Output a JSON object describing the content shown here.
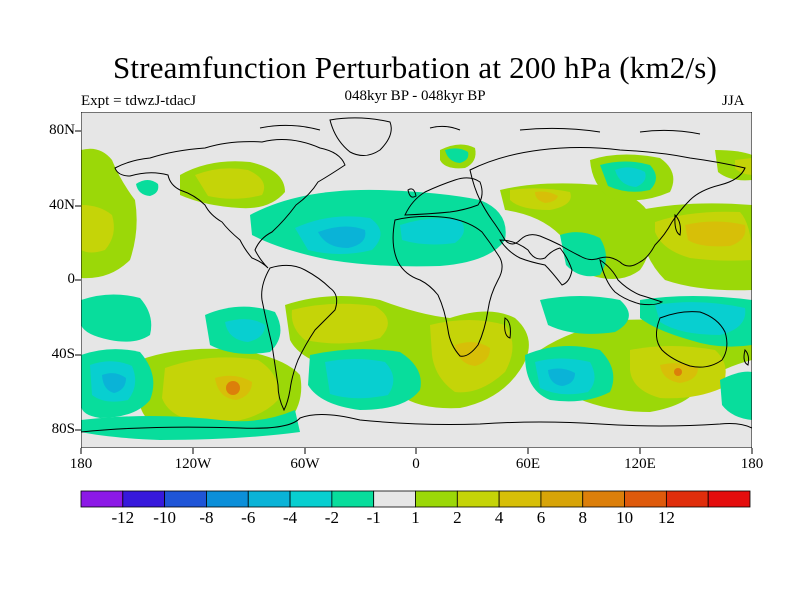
{
  "title": "Streamfunction Perturbation at 200 hPa (km2/s)",
  "subtitle": "048kyr BP - 048kyr BP",
  "left_label": "Expt = tdwzJ-tdacJ",
  "right_label": "JJA",
  "lat_labels": [
    "80N",
    "40N",
    "0",
    "40S",
    "80S"
  ],
  "lon_labels": [
    "180",
    "120W",
    "60W",
    "0",
    "60E",
    "120E",
    "180"
  ],
  "colorbar": {
    "colors": [
      "#8c19e6",
      "#3719dc",
      "#1f55d7",
      "#0c8fd9",
      "#0ab3d7",
      "#08cfd0",
      "#08dd9c",
      "#e6e6e6",
      "#9bd808",
      "#c5d408",
      "#d7bf08",
      "#d7a408",
      "#dc7f0a",
      "#de5a0c",
      "#e02e0c",
      "#e40d0d"
    ],
    "labels": [
      "-12",
      "-10",
      "-8",
      "-6",
      "-4",
      "-2",
      "-1",
      "1",
      "2",
      "4",
      "6",
      "8",
      "10",
      "12"
    ]
  },
  "map_background": "#e6e6e6"
}
